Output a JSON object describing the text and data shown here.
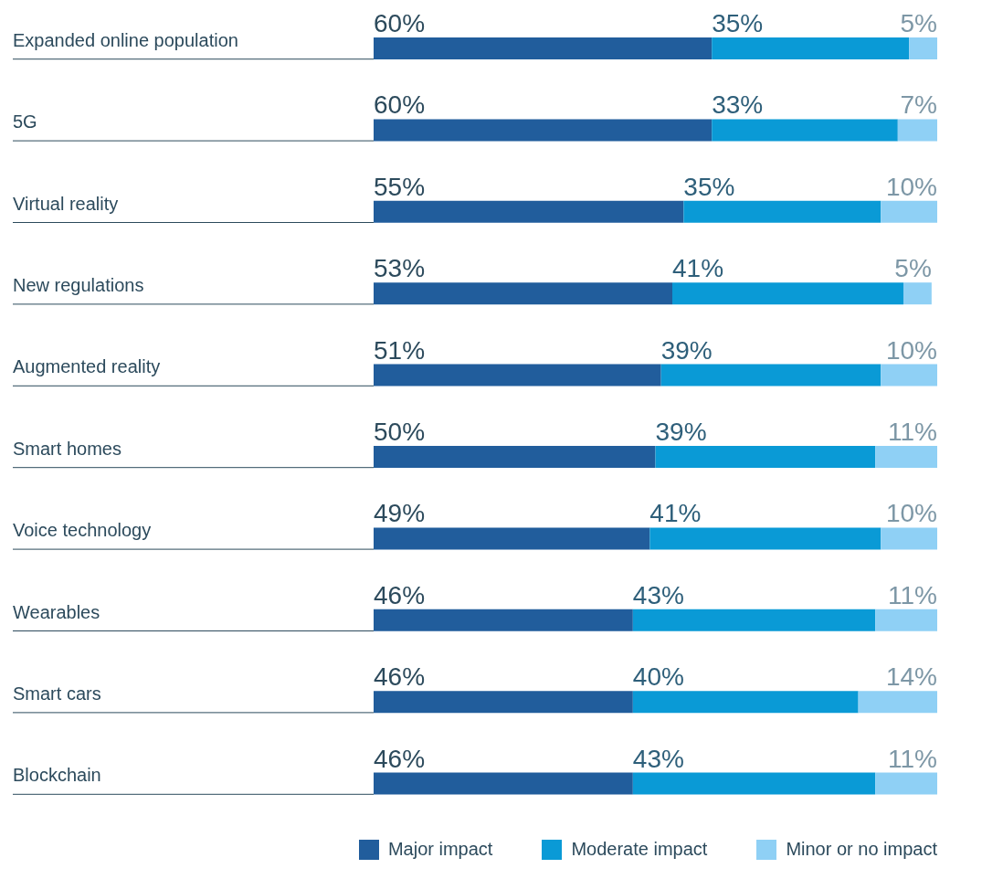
{
  "chart_data": {
    "type": "bar",
    "orientation": "horizontal",
    "stacked": true,
    "legend": "bottom right",
    "categories": [
      "Expanded online population",
      "5G",
      "Virtual reality",
      "New regulations",
      "Augmented reality",
      "Smart homes",
      "Voice technology",
      "Wearables",
      "Smart cars",
      "Blockchain"
    ],
    "series": [
      {
        "name": "Major impact",
        "color": "#215d9c",
        "values": [
          60,
          60,
          55,
          53,
          51,
          50,
          49,
          46,
          46,
          46
        ],
        "value_labels": [
          "60%",
          "60%",
          "55%",
          "53%",
          "51%",
          "50%",
          "49%",
          "46%",
          "46%",
          "46%"
        ]
      },
      {
        "name": "Moderate impact",
        "color": "#0a9ad6",
        "values": [
          35,
          33,
          35,
          41,
          39,
          39,
          41,
          43,
          40,
          43
        ],
        "value_labels": [
          "35%",
          "33%",
          "35%",
          "41%",
          "39%",
          "39%",
          "41%",
          "43%",
          "40%",
          "43%"
        ]
      },
      {
        "name": "Minor or no impact",
        "color": "#8fd0f5",
        "values": [
          5,
          7,
          10,
          5,
          10,
          11,
          10,
          11,
          14,
          11
        ],
        "value_labels": [
          "5%",
          "7%",
          "10%",
          "5%",
          "10%",
          "11%",
          "10%",
          "11%",
          "14%",
          "11%"
        ]
      }
    ]
  }
}
